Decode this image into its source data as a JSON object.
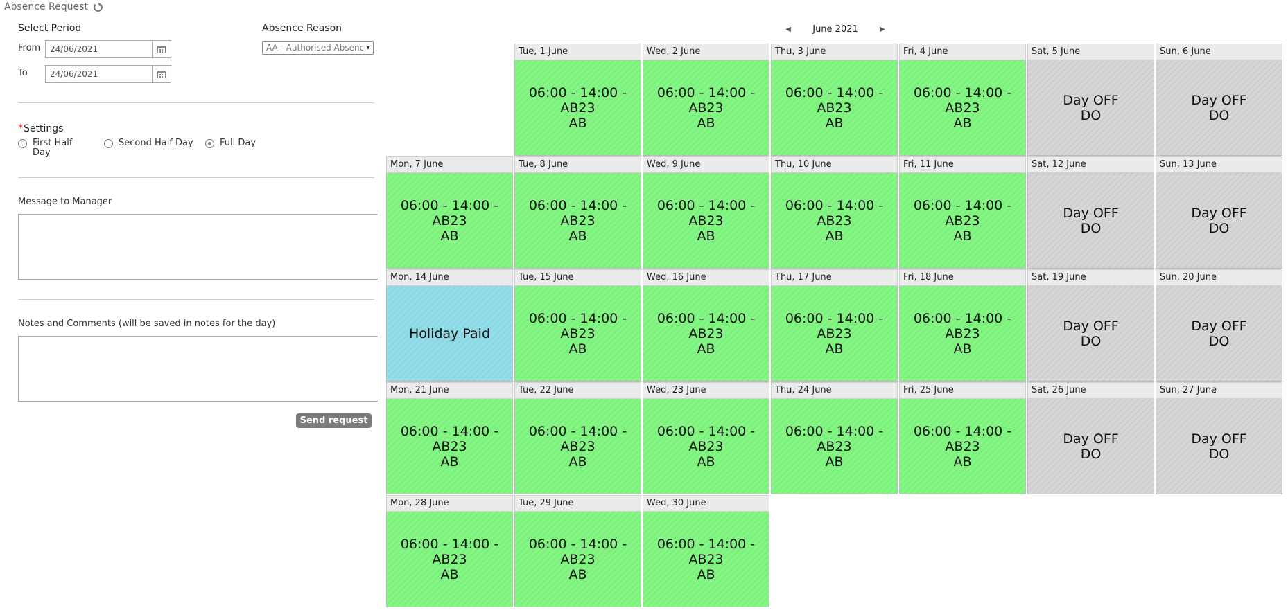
{
  "header": {
    "title": "Absence Request",
    "refresh_icon": "refresh-icon"
  },
  "form": {
    "select_period_label": "Select Period",
    "from_label": "From",
    "from_value": "24/06/2021",
    "to_label": "To",
    "to_value": "24/06/2021",
    "absence_reason_label": "Absence Reason",
    "absence_reason_value": "AA - Authorised Absence",
    "settings_required": "*",
    "settings_label": "Settings",
    "options": [
      {
        "label_line1": "First Half",
        "label_line2": "Day",
        "selected": false
      },
      {
        "label_line1": "Second Half Day",
        "label_line2": "",
        "selected": false
      },
      {
        "label_line1": "Full Day",
        "label_line2": "",
        "selected": true
      }
    ],
    "message_label": "Message to Manager",
    "message_value": "",
    "notes_label": "Notes and Comments (will be saved in notes for the day)",
    "notes_value": "",
    "send_label": "Send request"
  },
  "calendar": {
    "month_label": "June 2021",
    "prev_icon": "triangle-left-icon",
    "next_icon": "triangle-right-icon",
    "colors": {
      "work": "#84f684",
      "off": "#d6d6d6",
      "holiday": "#93dde9"
    },
    "weeks": [
      [
        null,
        {
          "head": "Tue, 1 June",
          "line1": "06:00 - 14:00 - AB23",
          "line2": "AB",
          "kind": "work"
        },
        {
          "head": "Wed, 2 June",
          "line1": "06:00 - 14:00 - AB23",
          "line2": "AB",
          "kind": "work"
        },
        {
          "head": "Thu, 3 June",
          "line1": "06:00 - 14:00 - AB23",
          "line2": "AB",
          "kind": "work"
        },
        {
          "head": "Fri, 4 June",
          "line1": "06:00 - 14:00 - AB23",
          "line2": "AB",
          "kind": "work"
        },
        {
          "head": "Sat, 5 June",
          "line1": "Day OFF",
          "line2": "DO",
          "kind": "off"
        },
        {
          "head": "Sun, 6 June",
          "line1": "Day OFF",
          "line2": "DO",
          "kind": "off"
        }
      ],
      [
        {
          "head": "Mon, 7 June",
          "line1": "06:00 - 14:00 - AB23",
          "line2": "AB",
          "kind": "work"
        },
        {
          "head": "Tue, 8 June",
          "line1": "06:00 - 14:00 - AB23",
          "line2": "AB",
          "kind": "work"
        },
        {
          "head": "Wed, 9 June",
          "line1": "06:00 - 14:00 - AB23",
          "line2": "AB",
          "kind": "work"
        },
        {
          "head": "Thu, 10 June",
          "line1": "06:00 - 14:00 - AB23",
          "line2": "AB",
          "kind": "work"
        },
        {
          "head": "Fri, 11 June",
          "line1": "06:00 - 14:00 - AB23",
          "line2": "AB",
          "kind": "work"
        },
        {
          "head": "Sat, 12 June",
          "line1": "Day OFF",
          "line2": "DO",
          "kind": "off"
        },
        {
          "head": "Sun, 13 June",
          "line1": "Day OFF",
          "line2": "DO",
          "kind": "off"
        }
      ],
      [
        {
          "head": "Mon, 14 June",
          "line1": "Holiday Paid",
          "line2": "",
          "kind": "holiday"
        },
        {
          "head": "Tue, 15 June",
          "line1": "06:00 - 14:00 - AB23",
          "line2": "AB",
          "kind": "work"
        },
        {
          "head": "Wed, 16 June",
          "line1": "06:00 - 14:00 - AB23",
          "line2": "AB",
          "kind": "work"
        },
        {
          "head": "Thu, 17 June",
          "line1": "06:00 - 14:00 - AB23",
          "line2": "AB",
          "kind": "work"
        },
        {
          "head": "Fri, 18 June",
          "line1": "06:00 - 14:00 - AB23",
          "line2": "AB",
          "kind": "work"
        },
        {
          "head": "Sat, 19 June",
          "line1": "Day OFF",
          "line2": "DO",
          "kind": "off"
        },
        {
          "head": "Sun, 20 June",
          "line1": "Day OFF",
          "line2": "DO",
          "kind": "off"
        }
      ],
      [
        {
          "head": "Mon, 21 June",
          "line1": "06:00 - 14:00 - AB23",
          "line2": "AB",
          "kind": "work"
        },
        {
          "head": "Tue, 22 June",
          "line1": "06:00 - 14:00 - AB23",
          "line2": "AB",
          "kind": "work"
        },
        {
          "head": "Wed, 23 June",
          "line1": "06:00 - 14:00 - AB23",
          "line2": "AB",
          "kind": "work"
        },
        {
          "head": "Thu, 24 June",
          "line1": "06:00 - 14:00 - AB23",
          "line2": "AB",
          "kind": "work"
        },
        {
          "head": "Fri, 25 June",
          "line1": "06:00 - 14:00 - AB23",
          "line2": "AB",
          "kind": "work"
        },
        {
          "head": "Sat, 26 June",
          "line1": "Day OFF",
          "line2": "DO",
          "kind": "off"
        },
        {
          "head": "Sun, 27 June",
          "line1": "Day OFF",
          "line2": "DO",
          "kind": "off"
        }
      ],
      [
        {
          "head": "Mon, 28 June",
          "line1": "06:00 - 14:00 - AB23",
          "line2": "AB",
          "kind": "work"
        },
        {
          "head": "Tue, 29 June",
          "line1": "06:00 - 14:00 - AB23",
          "line2": "AB",
          "kind": "work"
        },
        {
          "head": "Wed, 30 June",
          "line1": "06:00 - 14:00 - AB23",
          "line2": "AB",
          "kind": "work"
        },
        null,
        null,
        null,
        null
      ]
    ]
  }
}
